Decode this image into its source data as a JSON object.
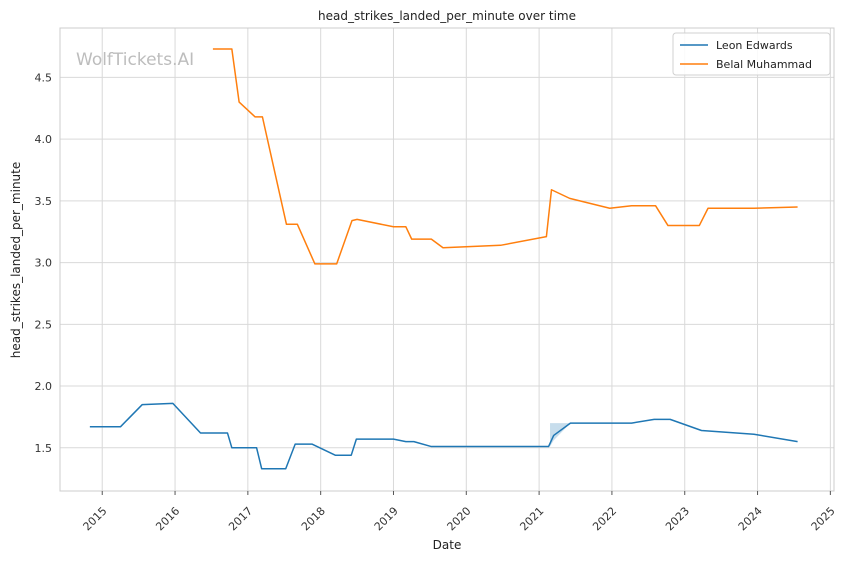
{
  "chart_data": {
    "type": "line",
    "title": "head_strikes_landed_per_minute over time",
    "xlabel": "Date",
    "ylabel": "head_strikes_landed_per_minute",
    "watermark": "WolfTickets.AI",
    "x_ticks": [
      "2015",
      "2016",
      "2017",
      "2018",
      "2019",
      "2020",
      "2021",
      "2022",
      "2023",
      "2024",
      "2025"
    ],
    "y_ticks": [
      "1.5",
      "2.0",
      "2.5",
      "3.0",
      "3.5",
      "4.0",
      "4.5"
    ],
    "xlim": [
      2014.42,
      2025.05
    ],
    "ylim": [
      1.15,
      4.9
    ],
    "grid": true,
    "legend_position": "top-right",
    "series": [
      {
        "name": "Leon Edwards",
        "color": "#1f77b4",
        "x": [
          2014.83,
          2015.25,
          2015.55,
          2015.97,
          2016.35,
          2016.72,
          2016.78,
          2017.12,
          2017.19,
          2017.52,
          2017.65,
          2017.88,
          2018.2,
          2018.42,
          2018.49,
          2019.0,
          2019.17,
          2019.28,
          2019.52,
          2021.13,
          2021.2,
          2021.43,
          2022.0,
          2022.27,
          2022.58,
          2022.8,
          2023.23,
          2023.95,
          2024.55
        ],
        "y": [
          1.67,
          1.67,
          1.85,
          1.86,
          1.62,
          1.62,
          1.5,
          1.5,
          1.33,
          1.33,
          1.53,
          1.53,
          1.44,
          1.44,
          1.57,
          1.57,
          1.55,
          1.55,
          1.51,
          1.51,
          1.6,
          1.7,
          1.7,
          1.7,
          1.73,
          1.73,
          1.64,
          1.61,
          1.55
        ],
        "band": {
          "x": [
            2021.15,
            2021.2,
            2021.43
          ],
          "upper": [
            1.7,
            1.7,
            1.7
          ],
          "lower": [
            1.51,
            1.56,
            1.7
          ]
        }
      },
      {
        "name": "Belal Muhammad",
        "color": "#ff7f0e",
        "x": [
          2016.52,
          2016.78,
          2016.88,
          2017.1,
          2017.2,
          2017.53,
          2017.68,
          2017.92,
          2018.22,
          2018.43,
          2018.5,
          2019.0,
          2019.17,
          2019.25,
          2019.52,
          2019.68,
          2020.47,
          2021.1,
          2021.17,
          2021.42,
          2021.97,
          2022.27,
          2022.6,
          2022.77,
          2023.2,
          2023.32,
          2023.95,
          2024.55
        ],
        "y": [
          4.73,
          4.73,
          4.3,
          4.18,
          4.18,
          3.31,
          3.31,
          2.99,
          2.99,
          3.34,
          3.35,
          3.29,
          3.29,
          3.19,
          3.19,
          3.12,
          3.14,
          3.21,
          3.59,
          3.52,
          3.44,
          3.46,
          3.46,
          3.3,
          3.3,
          3.44,
          3.44,
          3.45
        ]
      }
    ]
  }
}
